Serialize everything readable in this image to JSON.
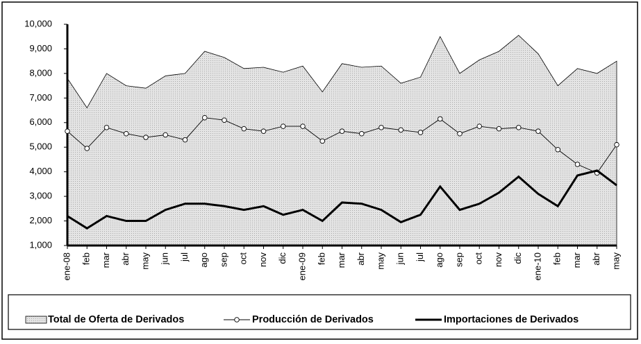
{
  "chart_data": {
    "type": "line",
    "categories": [
      "ene-08",
      "feb",
      "mar",
      "abr",
      "may",
      "jun",
      "jul",
      "ago",
      "sep",
      "oct",
      "nov",
      "dic",
      "ene-09",
      "feb",
      "mar",
      "abr",
      "may",
      "jun",
      "jul",
      "ago",
      "sep",
      "oct",
      "nov",
      "dic",
      "ene-10",
      "feb",
      "mar",
      "abr",
      "may"
    ],
    "series": [
      {
        "name": "Total de Oferta de Derivados",
        "color": "#d9d9d9",
        "style": "area",
        "values": [
          7800,
          6600,
          8000,
          7500,
          7400,
          7900,
          8000,
          8900,
          8650,
          8200,
          8250,
          8050,
          8300,
          7250,
          8400,
          8250,
          8300,
          7600,
          7850,
          9500,
          8000,
          8550,
          8900,
          9550,
          8800,
          7500,
          8200,
          8000,
          8500
        ]
      },
      {
        "name": "Producción de Derivados",
        "color": "#000000",
        "style": "marker",
        "values": [
          5650,
          4950,
          5800,
          5550,
          5400,
          5500,
          5300,
          6200,
          6100,
          5750,
          5650,
          5850,
          5850,
          5250,
          5650,
          5550,
          5800,
          5700,
          5600,
          6150,
          5550,
          5850,
          5750,
          5800,
          5650,
          4900,
          4300,
          3950,
          5100
        ]
      },
      {
        "name": "Importaciones de Derivados",
        "color": "#000000",
        "style": "thick",
        "values": [
          2200,
          1700,
          2200,
          2000,
          2000,
          2450,
          2700,
          2700,
          2600,
          2450,
          2600,
          2250,
          2450,
          2000,
          2750,
          2700,
          2450,
          1950,
          2250,
          3400,
          2450,
          2700,
          3150,
          3800,
          3100,
          2600,
          3850,
          4050,
          3450
        ]
      }
    ],
    "ylim": [
      1000,
      10000
    ],
    "yticks": [
      {
        "value": 1000,
        "label": "1,000"
      },
      {
        "value": 2000,
        "label": "2,000"
      },
      {
        "value": 3000,
        "label": "3,000"
      },
      {
        "value": 4000,
        "label": "4,000"
      },
      {
        "value": 5000,
        "label": "5,000"
      },
      {
        "value": 6000,
        "label": "6,000"
      },
      {
        "value": 7000,
        "label": "7,000"
      },
      {
        "value": 8000,
        "label": "8,000"
      },
      {
        "value": 9000,
        "label": "9,000"
      },
      {
        "value": 10000,
        "label": "10,000"
      }
    ],
    "legend": "bottom"
  }
}
